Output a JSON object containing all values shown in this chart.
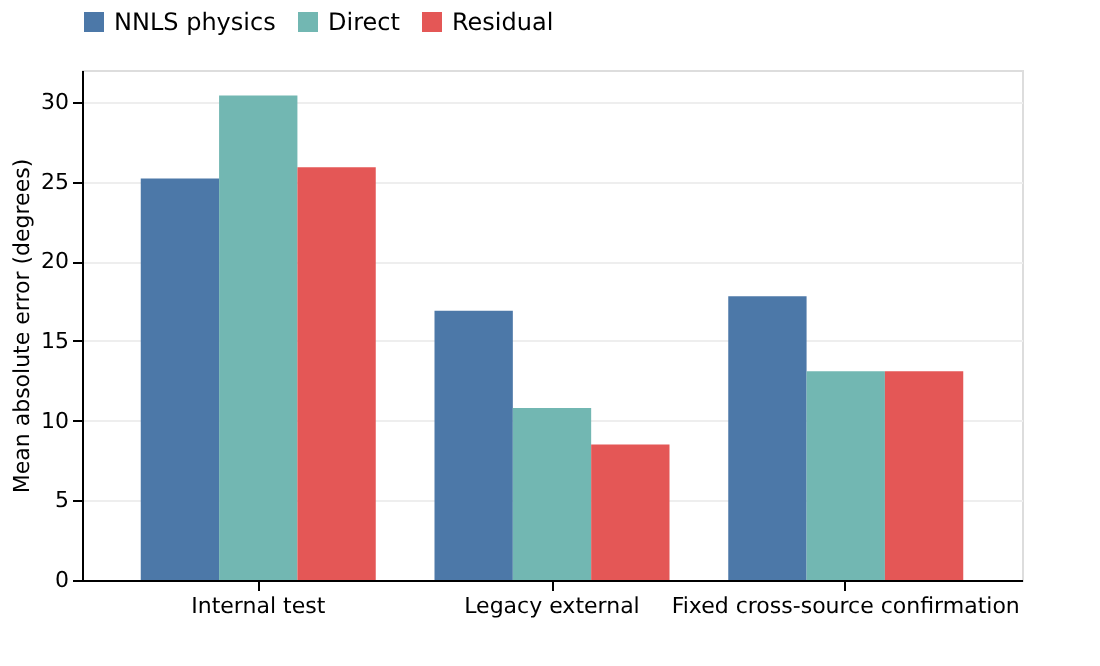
{
  "chart_data": {
    "type": "bar",
    "ylabel": "Mean absolute error (degrees)",
    "categories": [
      "Internal test",
      "Legacy external",
      "Fixed cross-source confirmation"
    ],
    "series": [
      {
        "name": "NNLS physics",
        "color": "#4c78a8",
        "values": [
          25.2,
          16.9,
          17.8
        ]
      },
      {
        "name": "Direct",
        "color": "#72b7b2",
        "values": [
          30.4,
          10.8,
          13.1
        ]
      },
      {
        "name": "Residual",
        "color": "#e45756",
        "values": [
          25.9,
          8.5,
          13.1
        ]
      }
    ],
    "ylim": [
      0,
      32
    ],
    "yticks": [
      0,
      5,
      10,
      15,
      20,
      25,
      30
    ],
    "grid": "y",
    "legend": "top"
  }
}
